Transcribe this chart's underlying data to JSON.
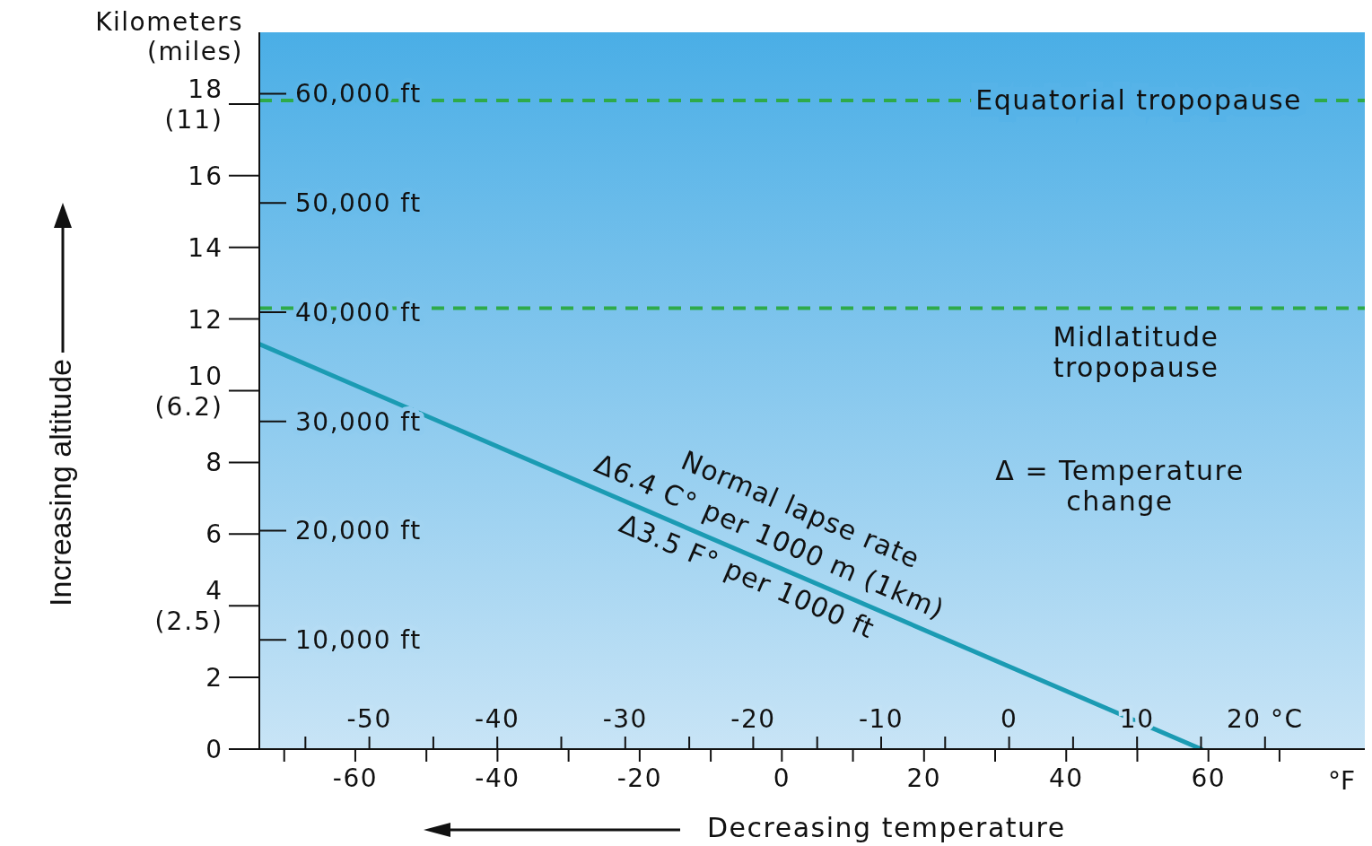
{
  "chart_data": {
    "type": "line",
    "ylabel": "Kilometers (miles)",
    "xlabel": "Decreasing temperature",
    "x": [
      -73.5,
      59
    ],
    "series": [
      {
        "color": "#1b9bb3",
        "values": [
          11.3,
          0
        ]
      }
    ],
    "xlim": [
      -73.5,
      82
    ],
    "xticks": [
      {
        "value": -70,
        "label": null
      },
      -60,
      {
        "value": -50,
        "label": null
      },
      -40,
      {
        "value": -30,
        "label": null
      },
      -20,
      {
        "value": -10,
        "label": null
      },
      0,
      {
        "value": 10,
        "label": null
      },
      20,
      {
        "value": 30,
        "label": null
      },
      40,
      {
        "value": 50,
        "label": null
      },
      60,
      {
        "value": 70,
        "label": null
      }
    ],
    "x2lim": [
      -58.6,
      27.8
    ],
    "x2ticks": [
      {
        "value": -55,
        "label": null
      },
      -50,
      {
        "value": -45,
        "label": null
      },
      -40,
      {
        "value": -35,
        "label": null
      },
      -30,
      {
        "value": -25,
        "label": null
      },
      -20,
      {
        "value": -15,
        "label": null
      },
      -10,
      {
        "value": -5,
        "label": null
      },
      0,
      {
        "value": 5,
        "label": null
      },
      10,
      {
        "value": 15,
        "label": null
      },
      {
        "value": 20,
        "label": "20 °C"
      }
    ],
    "ylim": [
      0,
      20
    ],
    "yticks": [
      0,
      2,
      {
        "value": 4,
        "label": "4 (2.5)"
      },
      6,
      8,
      {
        "value": 10,
        "label": "10 (6.2)"
      },
      12,
      14,
      16,
      {
        "value": 18,
        "label": "18 (11)"
      }
    ],
    "y2lim": [
      0,
      65617
    ],
    "y2ticks": [
      {
        "value": 10000,
        "label": "10,000 ft"
      },
      {
        "value": 20000,
        "label": "20,000 ft"
      },
      {
        "value": 30000,
        "label": "30,000 ft"
      },
      {
        "value": 40000,
        "label": "40,000 ft"
      },
      {
        "value": 50000,
        "label": "50,000 ft"
      },
      {
        "value": 60000,
        "label": "60,000 ft"
      }
    ],
    "ref_lines": [
      {
        "axis": "y",
        "value": 18.1,
        "label": "Equatorial tropopause",
        "color": "#2eaa4a",
        "line_style": "dashed"
      },
      {
        "axis": "y",
        "value": 12.3,
        "label": "Midlatitude tropopause",
        "color": "#2eaa4a",
        "line_style": "dashed"
      }
    ],
    "annotations": [
      "Normal lapse rate",
      "Δ6.4 C° per 1000 m (1km)",
      "Δ3.5 F° per 1000 ft",
      "Increasing altitude",
      "Δ = Temperature change",
      "°F"
    ]
  }
}
